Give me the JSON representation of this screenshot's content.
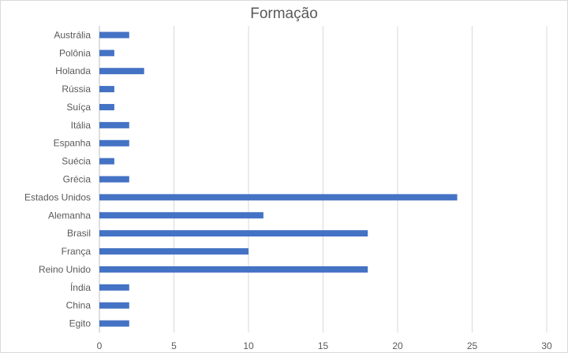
{
  "chart_data": {
    "type": "bar",
    "orientation": "horizontal",
    "title": "Formação",
    "xlabel": "",
    "ylabel": "",
    "categories": [
      "Austrália",
      "Polônia",
      "Holanda",
      "Rússia",
      "Suíça",
      "Itália",
      "Espanha",
      "Suécia",
      "Grécia",
      "Estados Unidos",
      "Alemanha",
      "Brasil",
      "França",
      "Reino Unido",
      "Índia",
      "China",
      "Egito"
    ],
    "values": [
      2,
      1,
      3,
      1,
      1,
      2,
      2,
      1,
      2,
      24,
      11,
      18,
      10,
      18,
      2,
      2,
      2
    ],
    "xlim": [
      0,
      30
    ],
    "xticks": [
      0,
      5,
      10,
      15,
      20,
      25,
      30
    ],
    "grid": true,
    "legend": "none",
    "bar_color": "#4472C4"
  }
}
